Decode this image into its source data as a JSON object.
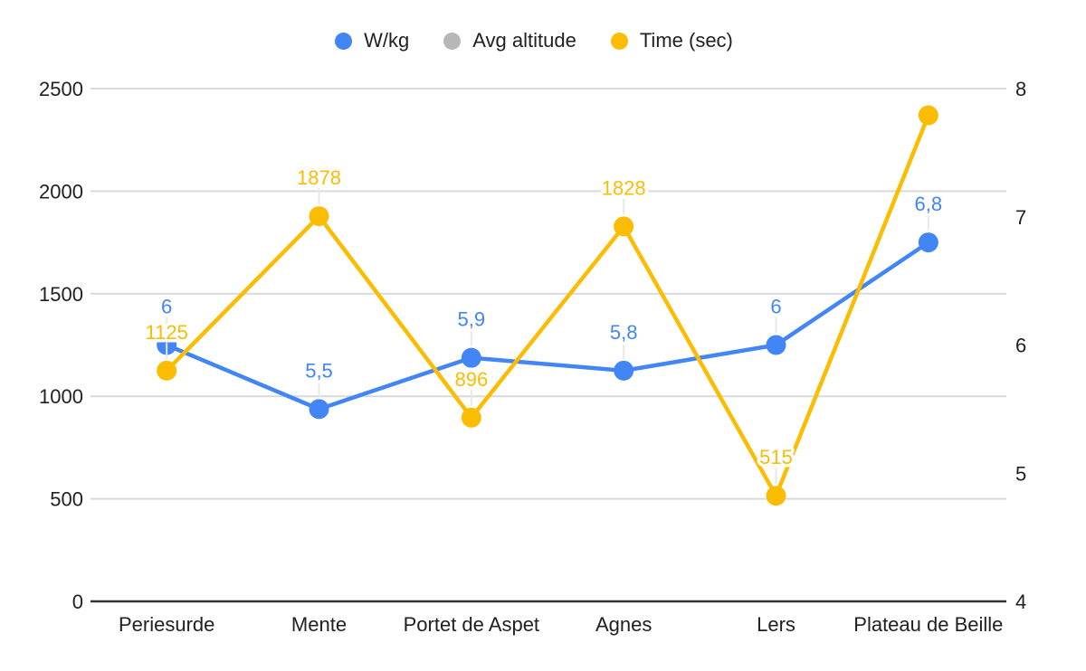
{
  "chart_data": {
    "type": "line",
    "title": "",
    "categories": [
      "Periesurde",
      "Mente",
      "Portet de Aspet",
      "Agnes",
      "Lers",
      "Plateau de Beille"
    ],
    "series": [
      {
        "name": "W/kg",
        "color": "#4285F4",
        "axis": "right",
        "values": [
          6,
          5.5,
          5.9,
          5.8,
          6,
          6.8
        ],
        "point_labels": [
          "6",
          "5,5",
          "5,9",
          "5,8",
          "6",
          "6,8"
        ]
      },
      {
        "name": "Avg altitude",
        "color": "#B7B7B7",
        "axis": "left",
        "values": [
          null,
          null,
          null,
          null,
          null,
          null
        ],
        "point_labels": [
          "",
          "",
          "",
          "",
          "",
          ""
        ]
      },
      {
        "name": "Time (sec)",
        "color": "#FBBC04",
        "axis": "left",
        "values": [
          1125,
          1878,
          896,
          1828,
          515,
          2370
        ],
        "point_labels": [
          "1125",
          "1878",
          "896",
          "1828",
          "515",
          ""
        ]
      }
    ],
    "left_axis": {
      "min": 0,
      "max": 2500,
      "ticks": [
        "0",
        "500",
        "1000",
        "1500",
        "2000",
        "2500"
      ]
    },
    "right_axis": {
      "min": 4,
      "max": 8,
      "ticks": [
        "4",
        "5",
        "6",
        "7",
        "8"
      ]
    },
    "grid": true,
    "legend_position": "top",
    "colors": {
      "gridline": "#D9D9D9",
      "baseline": "#333333",
      "axis_text": "#212121",
      "leader_line": "#E8E8E8",
      "background": "#FFFFFF"
    }
  }
}
